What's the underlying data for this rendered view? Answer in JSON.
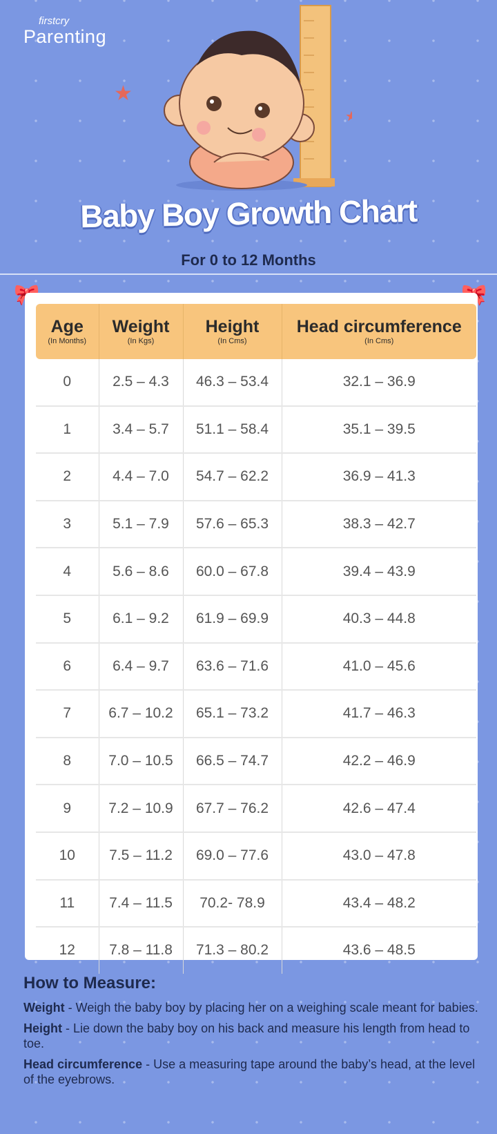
{
  "logo": {
    "small": "firstcry",
    "big": "Parenting"
  },
  "title": "Baby Boy Growth Chart",
  "subtitle": "For 0 to 12 Months",
  "colors": {
    "background": "#7b97e2",
    "header": "#f8c57d",
    "text_dark": "#1e2a4e"
  },
  "table": {
    "headers": [
      {
        "label": "Age",
        "unit": "(In Months)"
      },
      {
        "label": "Weight",
        "unit": "(In Kgs)"
      },
      {
        "label": "Height",
        "unit": "(In Cms)"
      },
      {
        "label": "Head circumference",
        "unit": "(In Cms)"
      }
    ],
    "rows": [
      [
        "0",
        "2.5 – 4.3",
        "46.3 – 53.4",
        "32.1 – 36.9"
      ],
      [
        "1",
        "3.4 – 5.7",
        "51.1 – 58.4",
        "35.1 – 39.5"
      ],
      [
        "2",
        "4.4 – 7.0",
        "54.7 – 62.2",
        "36.9 – 41.3"
      ],
      [
        "3",
        "5.1 – 7.9",
        "57.6 – 65.3",
        "38.3 – 42.7"
      ],
      [
        "4",
        "5.6 – 8.6",
        "60.0 – 67.8",
        "39.4 – 43.9"
      ],
      [
        "5",
        "6.1 – 9.2",
        "61.9 – 69.9",
        "40.3 – 44.8"
      ],
      [
        "6",
        "6.4 – 9.7",
        "63.6 – 71.6",
        "41.0 – 45.6"
      ],
      [
        "7",
        "6.7 – 10.2",
        "65.1 – 73.2",
        "41.7 – 46.3"
      ],
      [
        "8",
        "7.0 – 10.5",
        "66.5 – 74.7",
        "42.2 – 46.9"
      ],
      [
        "9",
        "7.2 – 10.9",
        "67.7 – 76.2",
        "42.6 – 47.4"
      ],
      [
        "10",
        "7.5 – 11.2",
        "69.0 – 77.6",
        "43.0 – 47.8"
      ],
      [
        "11",
        "7.4 – 11.5",
        "70.2- 78.9",
        "43.4 – 48.2"
      ],
      [
        "12",
        "7.8 – 11.8",
        "71.3 – 80.2",
        "43.6 – 48.5"
      ]
    ]
  },
  "how_to": {
    "heading": "How to Measure:",
    "items": [
      {
        "term": "Weight",
        "sep": " -  ",
        "text": "Weigh the baby boy by placing her on a weighing scale meant for babies."
      },
      {
        "term": "Height",
        "sep": " - ",
        "text": "Lie down the baby boy on his back and measure his length from head to toe."
      },
      {
        "term": "Head circumference",
        "sep": " - ",
        "text": "Use a measuring tape around the baby’s head, at the level of the eyebrows."
      }
    ]
  }
}
